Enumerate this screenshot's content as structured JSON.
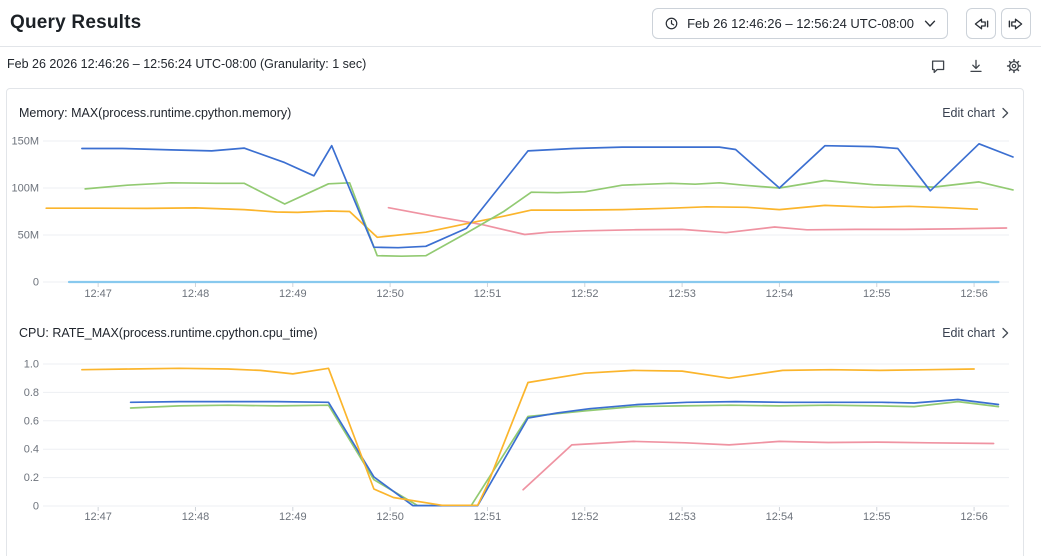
{
  "header": {
    "title": "Query Results",
    "time_picker": {
      "label": "Feb 26 12:46:26 – 12:56:24 UTC-08:00"
    }
  },
  "toolbar": {
    "range_summary": "Feb 26 2026 12:46:26 – 12:56:24 UTC-08:00 (Granularity: 1 sec)"
  },
  "labels": {
    "edit_chart": "Edit chart"
  },
  "icons": [
    "clock-icon",
    "chevron-down-icon",
    "skip-back-icon",
    "skip-forward-icon",
    "comment-icon",
    "download-icon",
    "gear-icon",
    "chevron-right-icon"
  ],
  "colors": {
    "blue": "#3b6fd1",
    "green": "#92ca72",
    "yellow": "#fbb52c",
    "pink": "#ef93a2",
    "light_blue": "#88c9ee",
    "grid": "#edeff3",
    "tick": "#cfd4da"
  },
  "chart_data": [
    {
      "type": "line",
      "title": "Memory: MAX(process.runtime.cpython.memory)",
      "ylabel": "",
      "y_unit": "bytes (M = millions)",
      "ylim": [
        0,
        150
      ],
      "x_start_clock": "12:46:26",
      "x_end_clock": "12:56:24",
      "x_range_seconds": [
        0,
        598
      ],
      "grid": true,
      "legend": "none",
      "y_ticks": [
        {
          "label": "150M",
          "v": 150
        },
        {
          "label": "100M",
          "v": 100
        },
        {
          "label": "50M",
          "v": 50
        },
        {
          "label": "0",
          "v": 0
        }
      ],
      "x_ticks": [
        {
          "label": "12:47",
          "t": 34
        },
        {
          "label": "12:48",
          "t": 94
        },
        {
          "label": "12:49",
          "t": 154
        },
        {
          "label": "12:50",
          "t": 214
        },
        {
          "label": "12:51",
          "t": 274
        },
        {
          "label": "12:52",
          "t": 334
        },
        {
          "label": "12:53",
          "t": 394
        },
        {
          "label": "12:54",
          "t": 454
        },
        {
          "label": "12:55",
          "t": 514
        },
        {
          "label": "12:56",
          "t": 574
        }
      ],
      "series": [
        {
          "name": "series-light-blue",
          "color_key": "light_blue",
          "width": 2.2,
          "points": [
            [
              16,
              0
            ],
            [
              589,
              0
            ]
          ]
        },
        {
          "name": "series-pink",
          "color_key": "pink",
          "width": 1.7,
          "points": [
            [
              213,
              79
            ],
            [
              241,
              70
            ],
            [
              271,
              61
            ],
            [
              297,
              50.5
            ],
            [
              312,
              53
            ],
            [
              334,
              54.5
            ],
            [
              364,
              55.5
            ],
            [
              394,
              56
            ],
            [
              421,
              52.5
            ],
            [
              451,
              58.5
            ],
            [
              471,
              55.5
            ],
            [
              501,
              56
            ],
            [
              531,
              56
            ],
            [
              561,
              56.5
            ],
            [
              594,
              57.5
            ]
          ]
        },
        {
          "name": "series-yellow",
          "color_key": "yellow",
          "width": 1.7,
          "points": [
            [
              2,
              78.5
            ],
            [
              34,
              78.5
            ],
            [
              64,
              78.3
            ],
            [
              94,
              78.8
            ],
            [
              124,
              77
            ],
            [
              144,
              74.5
            ],
            [
              157,
              74
            ],
            [
              176,
              75.5
            ],
            [
              189,
              75
            ],
            [
              206,
              47.5
            ],
            [
              236,
              53
            ],
            [
              261,
              62
            ],
            [
              284,
              70
            ],
            [
              301,
              76.5
            ],
            [
              327,
              76.5
            ],
            [
              357,
              77
            ],
            [
              387,
              78.5
            ],
            [
              409,
              80
            ],
            [
              434,
              79.5
            ],
            [
              454,
              77
            ],
            [
              482,
              81.5
            ],
            [
              512,
              79.5
            ],
            [
              534,
              80.5
            ],
            [
              557,
              79
            ],
            [
              576,
              77.5
            ]
          ]
        },
        {
          "name": "series-green",
          "color_key": "green",
          "width": 1.7,
          "points": [
            [
              26,
              99
            ],
            [
              52,
              103
            ],
            [
              79,
              105.5
            ],
            [
              107,
              105
            ],
            [
              124,
              105
            ],
            [
              149,
              83
            ],
            [
              176,
              104.5
            ],
            [
              189,
              105.5
            ],
            [
              206,
              28
            ],
            [
              221,
              27.5
            ],
            [
              236,
              28
            ],
            [
              261,
              52
            ],
            [
              284,
              75
            ],
            [
              301,
              95.5
            ],
            [
              317,
              95
            ],
            [
              334,
              96
            ],
            [
              357,
              103
            ],
            [
              387,
              105
            ],
            [
              402,
              104
            ],
            [
              417,
              105.5
            ],
            [
              432,
              103
            ],
            [
              454,
              100
            ],
            [
              482,
              108
            ],
            [
              512,
              103.5
            ],
            [
              534,
              102
            ],
            [
              549,
              101
            ],
            [
              577,
              106.5
            ],
            [
              598,
              98
            ]
          ]
        },
        {
          "name": "series-blue",
          "color_key": "blue",
          "width": 1.7,
          "points": [
            [
              24,
              142
            ],
            [
              49,
              142
            ],
            [
              79,
              140.5
            ],
            [
              104,
              139.5
            ],
            [
              124,
              142.5
            ],
            [
              149,
              127
            ],
            [
              167,
              113
            ],
            [
              178,
              145
            ],
            [
              204,
              37
            ],
            [
              219,
              36.5
            ],
            [
              236,
              38
            ],
            [
              261,
              57
            ],
            [
              299,
              139.5
            ],
            [
              327,
              142
            ],
            [
              357,
              143.5
            ],
            [
              387,
              143.5
            ],
            [
              417,
              143.5
            ],
            [
              427,
              141
            ],
            [
              454,
              100
            ],
            [
              482,
              145
            ],
            [
              512,
              144
            ],
            [
              527,
              142
            ],
            [
              547,
              97
            ],
            [
              577,
              147
            ],
            [
              598,
              133
            ]
          ]
        }
      ]
    },
    {
      "type": "line",
      "title": "CPU: RATE_MAX(process.runtime.cpython.cpu_time)",
      "ylabel": "",
      "y_unit": "cores",
      "ylim": [
        0,
        1.0
      ],
      "x_start_clock": "12:46:26",
      "x_end_clock": "12:56:24",
      "x_range_seconds": [
        0,
        598
      ],
      "grid": true,
      "legend": "none",
      "y_ticks": [
        {
          "label": "1.0",
          "v": 1.0
        },
        {
          "label": "0.8",
          "v": 0.8
        },
        {
          "label": "0.6",
          "v": 0.6
        },
        {
          "label": "0.4",
          "v": 0.4
        },
        {
          "label": "0.2",
          "v": 0.2
        },
        {
          "label": "0",
          "v": 0
        }
      ],
      "x_ticks": [
        {
          "label": "12:47",
          "t": 34
        },
        {
          "label": "12:48",
          "t": 94
        },
        {
          "label": "12:49",
          "t": 154
        },
        {
          "label": "12:50",
          "t": 214
        },
        {
          "label": "12:51",
          "t": 274
        },
        {
          "label": "12:52",
          "t": 334
        },
        {
          "label": "12:53",
          "t": 394
        },
        {
          "label": "12:54",
          "t": 454
        },
        {
          "label": "12:55",
          "t": 514
        },
        {
          "label": "12:56",
          "t": 574
        }
      ],
      "series": [
        {
          "name": "series-pink",
          "color_key": "pink",
          "width": 1.7,
          "points": [
            [
              296,
              0.115
            ],
            [
              326,
              0.43
            ],
            [
              364,
              0.455
            ],
            [
              396,
              0.445
            ],
            [
              423,
              0.43
            ],
            [
              454,
              0.455
            ],
            [
              484,
              0.447
            ],
            [
              514,
              0.45
            ],
            [
              546,
              0.445
            ],
            [
              586,
              0.44
            ]
          ]
        },
        {
          "name": "series-green",
          "color_key": "green",
          "width": 1.7,
          "points": [
            [
              54,
              0.69
            ],
            [
              84,
              0.705
            ],
            [
              114,
              0.71
            ],
            [
              144,
              0.705
            ],
            [
              176,
              0.71
            ],
            [
              204,
              0.185
            ],
            [
              231,
              0.003
            ],
            [
              264,
              0.003
            ],
            [
              299,
              0.63
            ],
            [
              334,
              0.67
            ],
            [
              364,
              0.7
            ],
            [
              394,
              0.705
            ],
            [
              424,
              0.71
            ],
            [
              454,
              0.705
            ],
            [
              484,
              0.71
            ],
            [
              514,
              0.705
            ],
            [
              537,
              0.7
            ],
            [
              564,
              0.735
            ],
            [
              589,
              0.7
            ]
          ]
        },
        {
          "name": "series-blue",
          "color_key": "blue",
          "width": 1.7,
          "points": [
            [
              54,
              0.73
            ],
            [
              84,
              0.735
            ],
            [
              114,
              0.735
            ],
            [
              144,
              0.735
            ],
            [
              176,
              0.73
            ],
            [
              204,
              0.205
            ],
            [
              228,
              0.003
            ],
            [
              268,
              0.003
            ],
            [
              299,
              0.62
            ],
            [
              317,
              0.655
            ],
            [
              337,
              0.685
            ],
            [
              367,
              0.715
            ],
            [
              397,
              0.73
            ],
            [
              427,
              0.735
            ],
            [
              457,
              0.73
            ],
            [
              487,
              0.73
            ],
            [
              517,
              0.73
            ],
            [
              537,
              0.725
            ],
            [
              564,
              0.75
            ],
            [
              589,
              0.715
            ]
          ]
        },
        {
          "name": "series-yellow",
          "color_key": "yellow",
          "width": 1.7,
          "points": [
            [
              24,
              0.96
            ],
            [
              54,
              0.965
            ],
            [
              84,
              0.97
            ],
            [
              114,
              0.965
            ],
            [
              134,
              0.955
            ],
            [
              154,
              0.93
            ],
            [
              176,
              0.97
            ],
            [
              204,
              0.12
            ],
            [
              216,
              0.06
            ],
            [
              246,
              0.005
            ],
            [
              268,
              0.005
            ],
            [
              274,
              0.15
            ],
            [
              299,
              0.87
            ],
            [
              334,
              0.935
            ],
            [
              364,
              0.955
            ],
            [
              394,
              0.95
            ],
            [
              423,
              0.9
            ],
            [
              456,
              0.955
            ],
            [
              486,
              0.96
            ],
            [
              516,
              0.955
            ],
            [
              546,
              0.96
            ],
            [
              574,
              0.965
            ]
          ]
        }
      ]
    }
  ]
}
